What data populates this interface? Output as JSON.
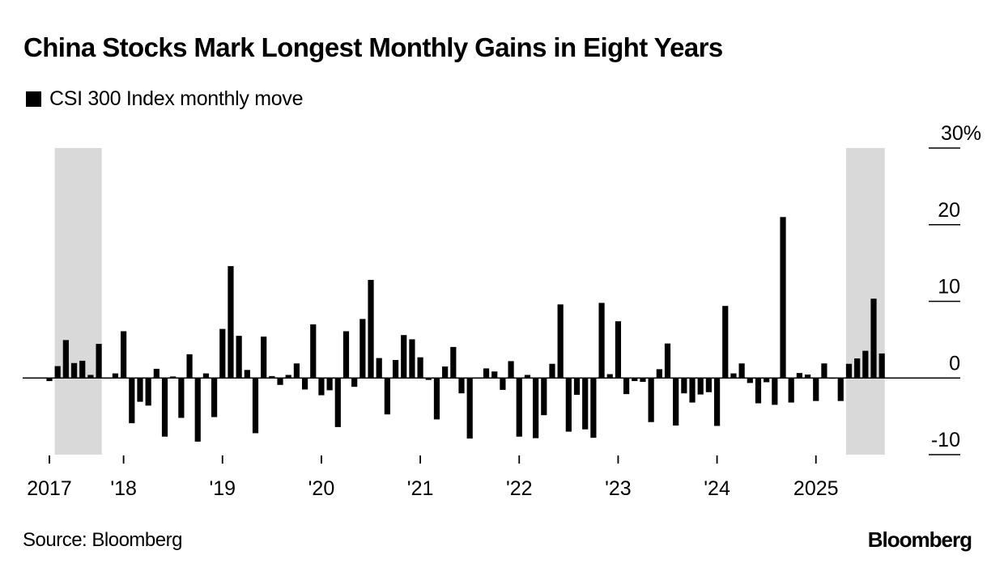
{
  "title": "China Stocks Mark Longest Monthly Gains in Eight Years",
  "legend": {
    "label": "CSI 300 Index monthly move",
    "swatch_color": "#000000"
  },
  "source": "Source: Bloomberg",
  "logo": "Bloomberg",
  "colors": {
    "bar": "#000000",
    "highlight": "#d9d9d9",
    "axis": "#000000"
  },
  "chart_data": {
    "type": "bar",
    "title": "China Stocks Mark Longest Monthly Gains in Eight Years",
    "subtitle": "CSI 300 Index monthly move",
    "xlabel": "",
    "ylabel": "",
    "unit": "%",
    "ylim": [
      -10,
      30
    ],
    "yticks": [
      30,
      20,
      10,
      0,
      -10
    ],
    "ytick_labels": [
      "30%",
      "20",
      "10",
      "0",
      "-10"
    ],
    "yaxis_position": "right",
    "grid": false,
    "start_month": "2017-04",
    "xticks": [
      {
        "label": "2017",
        "month_index": 0
      },
      {
        "label": "'18",
        "month_index": 9
      },
      {
        "label": "'19",
        "month_index": 21
      },
      {
        "label": "'20",
        "month_index": 33
      },
      {
        "label": "'21",
        "month_index": 45
      },
      {
        "label": "'22",
        "month_index": 57
      },
      {
        "label": "'23",
        "month_index": 69
      },
      {
        "label": "'24",
        "month_index": 81
      },
      {
        "label": "2025",
        "month_index": 93
      }
    ],
    "highlights": [
      {
        "from_month_index": 1,
        "to_month_index": 6,
        "label": "2017 streak"
      },
      {
        "from_month_index": 97,
        "to_month_index": 101,
        "label": "2025 streak"
      }
    ],
    "values": [
      -0.4,
      1.55,
      4.95,
      1.95,
      2.25,
      0.4,
      4.45,
      0.0,
      0.6,
      6.1,
      -5.9,
      -3.1,
      -3.6,
      1.2,
      -7.65,
      0.2,
      -5.2,
      3.1,
      -8.3,
      0.6,
      -5.1,
      6.4,
      14.6,
      5.5,
      1.05,
      -7.2,
      5.4,
      0.25,
      -0.9,
      0.4,
      1.9,
      -1.5,
      7.0,
      -2.25,
      -1.6,
      -6.4,
      6.1,
      -1.15,
      7.7,
      12.8,
      2.6,
      -4.75,
      2.35,
      5.6,
      5.05,
      2.7,
      -0.25,
      -5.4,
      1.5,
      4.05,
      -2.0,
      -7.9,
      0.0,
      1.25,
      0.85,
      -1.55,
      2.2,
      -7.65,
      0.4,
      -7.85,
      -4.85,
      1.85,
      9.6,
      -7.0,
      -2.2,
      -6.7,
      -7.8,
      9.8,
      0.5,
      7.4,
      -2.1,
      -0.4,
      -0.5,
      -5.75,
      1.15,
      4.5,
      -6.2,
      -2.0,
      -3.2,
      -2.15,
      -1.85,
      -6.25,
      9.4,
      0.6,
      1.9,
      -0.65,
      -3.3,
      -0.55,
      -3.5,
      21.0,
      -3.2,
      0.65,
      0.45,
      -3.0,
      1.9,
      -0.1,
      -3.0,
      1.85,
      2.55,
      3.55,
      10.35,
      3.2
    ]
  }
}
